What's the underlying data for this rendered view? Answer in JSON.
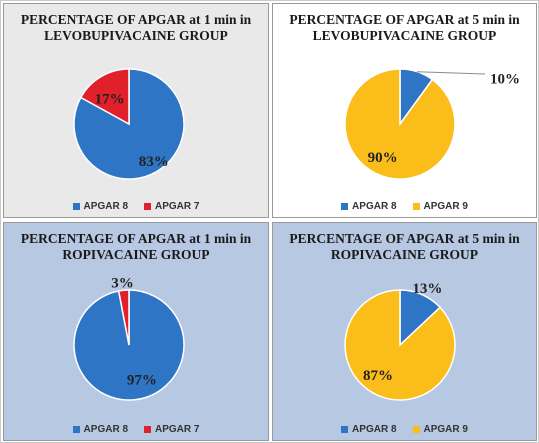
{
  "chart_data": [
    {
      "type": "pie",
      "title": "PERCENTAGE OF APGAR  at 1 min in  LEVOBUPIVACAINE GROUP",
      "slices": [
        {
          "label": "APGAR 8",
          "value": 83,
          "color": "#2e75c6",
          "text": "83%"
        },
        {
          "label": "APGAR  7",
          "value": 17,
          "color": "#e0202b",
          "text": "17%"
        }
      ],
      "legend": "bottom"
    },
    {
      "type": "pie",
      "title": "PERCENTAGE OF APGAR  at 5 min in  LEVOBUPIVACAINE GROUP",
      "slices": [
        {
          "label": "APGAR 8",
          "value": 10,
          "color": "#2e75c6",
          "text": "10%"
        },
        {
          "label": "APGAR 9",
          "value": 90,
          "color": "#fbbd1a",
          "text": "90%"
        }
      ],
      "legend": "bottom"
    },
    {
      "type": "pie",
      "title": "PERCENTAGE OF APGAR  at 1 min in  ROPIVACAINE GROUP",
      "slices": [
        {
          "label": "APGAR 8",
          "value": 97,
          "color": "#2e75c6",
          "text": "97%"
        },
        {
          "label": "APGAR 7",
          "value": 3,
          "color": "#e0202b",
          "text": "3%"
        }
      ],
      "legend": "bottom"
    },
    {
      "type": "pie",
      "title": "PERCENTAGE OF APGAR  at 5 min in ROPIVACAINE GROUP",
      "slices": [
        {
          "label": "APGAR 8",
          "value": 13,
          "color": "#2e75c6",
          "text": "13%"
        },
        {
          "label": "APGAR 9",
          "value": 87,
          "color": "#fbbd1a",
          "text": "87%"
        }
      ],
      "legend": "bottom"
    }
  ]
}
